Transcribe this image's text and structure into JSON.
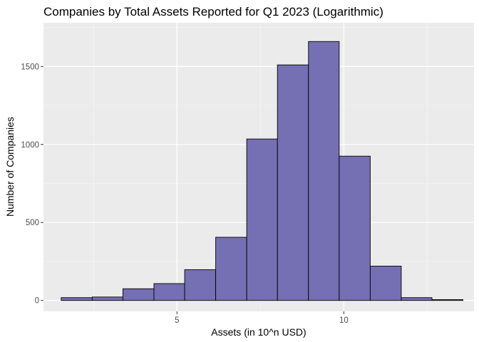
{
  "chart_data": {
    "type": "bar",
    "subtype": "histogram",
    "title": "Companies by Total Assets Reported for Q1 2023 (Logarithmic)",
    "xlabel": "Assets (in 10^n USD)",
    "ylabel": "Number of Companies",
    "xlim": [
      1.0,
      13.9
    ],
    "ylim": [
      -70,
      1780
    ],
    "x_ticks": [
      5,
      10
    ],
    "y_ticks": [
      0,
      500,
      1000,
      1500
    ],
    "x_tick_labels": [
      "5",
      "10"
    ],
    "y_tick_labels": [
      "0",
      "500",
      "1000",
      "1500"
    ],
    "bin_width": 0.926,
    "bins": [
      {
        "x0": 1.53,
        "x1": 2.46,
        "count": 18
      },
      {
        "x0": 2.46,
        "x1": 3.38,
        "count": 22
      },
      {
        "x0": 3.38,
        "x1": 4.31,
        "count": 75
      },
      {
        "x0": 4.31,
        "x1": 5.23,
        "count": 108
      },
      {
        "x0": 5.23,
        "x1": 6.16,
        "count": 197
      },
      {
        "x0": 6.16,
        "x1": 7.09,
        "count": 405
      },
      {
        "x0": 7.09,
        "x1": 8.01,
        "count": 1035
      },
      {
        "x0": 8.01,
        "x1": 8.94,
        "count": 1510
      },
      {
        "x0": 8.94,
        "x1": 9.86,
        "count": 1660
      },
      {
        "x0": 9.86,
        "x1": 10.79,
        "count": 925
      },
      {
        "x0": 10.79,
        "x1": 11.72,
        "count": 220
      },
      {
        "x0": 11.72,
        "x1": 12.64,
        "count": 18
      },
      {
        "x0": 12.64,
        "x1": 13.57,
        "count": 5
      }
    ],
    "grid": true,
    "legend": "none",
    "colors": {
      "bar_fill": "#7570b3",
      "bar_stroke": "#000000",
      "panel_background": "#ebebeb",
      "grid_major": "#ffffff",
      "grid_minor": "#f5f5f5",
      "tick_text": "#4d4d4d",
      "tick_mark": "#333333"
    }
  }
}
